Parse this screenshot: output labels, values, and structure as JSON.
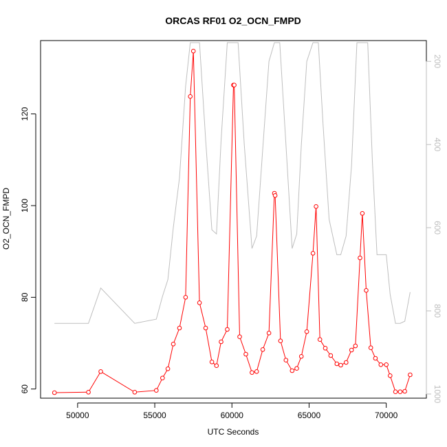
{
  "chart_data": {
    "type": "line",
    "title": "ORCAS RF01 O2_OCN_FMPD",
    "xlabel": "UTC Seconds",
    "ylabel": "O2_OCN_FMPD",
    "xlim": [
      47600,
      72600
    ],
    "ylim": [
      58,
      136
    ],
    "y2lim": [
      1010,
      150
    ],
    "x_ticks": [
      50000,
      55000,
      60000,
      65000,
      70000
    ],
    "x_tick_labels": [
      "50000",
      "55000",
      "60000",
      "65000",
      "70000"
    ],
    "y_ticks": [
      60,
      80,
      100,
      120
    ],
    "y_tick_labels": [
      "60",
      "80",
      "100",
      "120"
    ],
    "y2_ticks": [
      200,
      400,
      600,
      800,
      1000
    ],
    "y2_tick_labels": [
      "200",
      "400",
      "600",
      "800",
      "1000"
    ],
    "grid": false,
    "colors": {
      "primary": "#ff0000",
      "secondary": "#bebebe",
      "axis": "#000000"
    },
    "series": [
      {
        "axis": "left",
        "style": "line+open-circles",
        "x": [
          48500,
          50700,
          51500,
          53700,
          55100,
          55500,
          55850,
          56200,
          56600,
          57000,
          57300,
          57500,
          57900,
          58300,
          58700,
          59000,
          59300,
          59700,
          60100,
          60150,
          60500,
          60900,
          61300,
          61600,
          62000,
          62400,
          62750,
          62800,
          63150,
          63500,
          63900,
          64200,
          64500,
          64850,
          65250,
          65450,
          65700,
          66050,
          66400,
          66800,
          67050,
          67400,
          67750,
          68000,
          68300,
          68450,
          68700,
          69000,
          69300,
          69650,
          70000,
          70250,
          70600,
          70900,
          71200,
          71550
        ],
        "y": [
          59.2,
          59.3,
          63.8,
          59.3,
          59.7,
          62.4,
          64.4,
          69.8,
          73.3,
          80.0,
          123.8,
          133.7,
          78.8,
          73.3,
          65.9,
          65.1,
          70.3,
          73.0,
          126.3,
          126.3,
          71.4,
          67.6,
          63.6,
          63.8,
          68.6,
          72.2,
          102.7,
          102.2,
          70.5,
          66.3,
          64.0,
          64.5,
          67.1,
          72.5,
          89.6,
          99.8,
          70.8,
          68.9,
          67.3,
          65.5,
          65.2,
          65.8,
          68.5,
          69.4,
          88.6,
          98.3,
          81.5,
          69.0,
          66.7,
          65.3,
          65.3,
          62.9,
          59.4,
          59.4,
          59.5,
          63.1
        ]
      },
      {
        "axis": "right",
        "style": "line",
        "x": [
          48500,
          50700,
          51500,
          53700,
          55100,
          55500,
          55850,
          56200,
          56600,
          57000,
          57300,
          57600,
          57900,
          58300,
          58700,
          59000,
          59300,
          59700,
          60100,
          60400,
          60800,
          61300,
          61600,
          62000,
          62400,
          62750,
          63100,
          63500,
          63900,
          64200,
          64500,
          64850,
          65250,
          65600,
          65900,
          66300,
          66800,
          67050,
          67400,
          67750,
          68100,
          68450,
          68800,
          69100,
          69400,
          69800,
          70000,
          70250,
          70600,
          70900,
          71200,
          71550
        ],
        "y": [
          830,
          830,
          745,
          830,
          820,
          765,
          725,
          600,
          480,
          260,
          155,
          155,
          155,
          390,
          605,
          615,
          390,
          155,
          155,
          155,
          400,
          650,
          620,
          410,
          200,
          155,
          155,
          400,
          650,
          615,
          400,
          200,
          155,
          155,
          350,
          580,
          665,
          665,
          620,
          450,
          155,
          155,
          155,
          440,
          665,
          665,
          665,
          760,
          830,
          830,
          825,
          755
        ]
      }
    ]
  }
}
